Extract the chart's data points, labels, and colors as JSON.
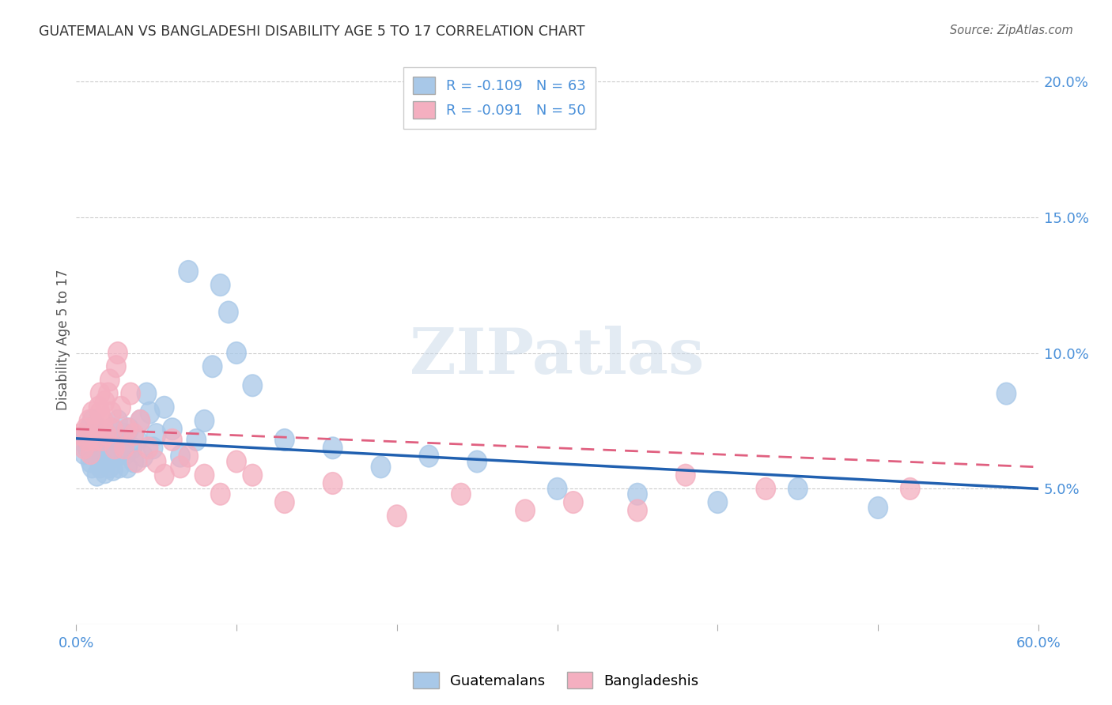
{
  "title": "GUATEMALAN VS BANGLADESHI DISABILITY AGE 5 TO 17 CORRELATION CHART",
  "source": "Source: ZipAtlas.com",
  "ylabel_label": "Disability Age 5 to 17",
  "xlim": [
    0.0,
    0.6
  ],
  "ylim": [
    0.0,
    0.21
  ],
  "xtick_labels": [
    "0.0%",
    "",
    "",
    "",
    "",
    "",
    "60.0%"
  ],
  "xtick_values": [
    0.0,
    0.1,
    0.2,
    0.3,
    0.4,
    0.5,
    0.6
  ],
  "ytick_labels": [
    "5.0%",
    "10.0%",
    "15.0%",
    "20.0%"
  ],
  "ytick_values": [
    0.05,
    0.1,
    0.15,
    0.2
  ],
  "guatemalan_color": "#a8c8e8",
  "bangladeshi_color": "#f4afc0",
  "trend_guatemalan_color": "#2060b0",
  "trend_bangladeshi_color": "#e06080",
  "r_guatemalan": -0.109,
  "n_guatemalan": 63,
  "r_bangladeshi": -0.091,
  "n_bangladeshi": 50,
  "watermark": "ZIPatlas",
  "background_color": "#ffffff",
  "grid_color": "#cccccc",
  "tick_color": "#aaaaaa",
  "label_color": "#4a90d9",
  "title_color": "#333333",
  "source_color": "#666666",
  "ylabel_color": "#555555",
  "guatemalan_x": [
    0.003,
    0.005,
    0.006,
    0.007,
    0.008,
    0.009,
    0.01,
    0.01,
    0.012,
    0.013,
    0.014,
    0.015,
    0.015,
    0.016,
    0.017,
    0.018,
    0.018,
    0.019,
    0.02,
    0.021,
    0.022,
    0.022,
    0.023,
    0.024,
    0.025,
    0.026,
    0.027,
    0.028,
    0.03,
    0.031,
    0.032,
    0.033,
    0.035,
    0.036,
    0.038,
    0.04,
    0.042,
    0.044,
    0.046,
    0.048,
    0.05,
    0.055,
    0.06,
    0.065,
    0.07,
    0.075,
    0.08,
    0.085,
    0.09,
    0.095,
    0.1,
    0.11,
    0.13,
    0.16,
    0.19,
    0.22,
    0.25,
    0.3,
    0.35,
    0.4,
    0.45,
    0.5,
    0.58
  ],
  "guatemalan_y": [
    0.068,
    0.063,
    0.07,
    0.065,
    0.072,
    0.06,
    0.075,
    0.058,
    0.068,
    0.055,
    0.072,
    0.065,
    0.058,
    0.06,
    0.068,
    0.062,
    0.056,
    0.07,
    0.065,
    0.058,
    0.072,
    0.063,
    0.057,
    0.068,
    0.062,
    0.075,
    0.058,
    0.065,
    0.07,
    0.063,
    0.058,
    0.072,
    0.065,
    0.06,
    0.068,
    0.075,
    0.062,
    0.085,
    0.078,
    0.065,
    0.07,
    0.08,
    0.072,
    0.062,
    0.13,
    0.068,
    0.075,
    0.095,
    0.125,
    0.115,
    0.1,
    0.088,
    0.068,
    0.065,
    0.058,
    0.062,
    0.06,
    0.05,
    0.048,
    0.045,
    0.05,
    0.043,
    0.085
  ],
  "bangladeshi_x": [
    0.003,
    0.005,
    0.006,
    0.007,
    0.008,
    0.009,
    0.01,
    0.012,
    0.013,
    0.014,
    0.015,
    0.015,
    0.016,
    0.017,
    0.018,
    0.019,
    0.02,
    0.021,
    0.022,
    0.023,
    0.024,
    0.025,
    0.026,
    0.028,
    0.03,
    0.032,
    0.034,
    0.036,
    0.038,
    0.04,
    0.045,
    0.05,
    0.055,
    0.06,
    0.065,
    0.07,
    0.08,
    0.09,
    0.1,
    0.11,
    0.13,
    0.16,
    0.2,
    0.24,
    0.28,
    0.31,
    0.35,
    0.38,
    0.43,
    0.52
  ],
  "bangladeshi_y": [
    0.07,
    0.065,
    0.072,
    0.068,
    0.075,
    0.063,
    0.078,
    0.068,
    0.073,
    0.08,
    0.085,
    0.078,
    0.068,
    0.075,
    0.082,
    0.07,
    0.085,
    0.09,
    0.078,
    0.072,
    0.065,
    0.095,
    0.1,
    0.08,
    0.065,
    0.072,
    0.085,
    0.07,
    0.06,
    0.075,
    0.065,
    0.06,
    0.055,
    0.068,
    0.058,
    0.062,
    0.055,
    0.048,
    0.06,
    0.055,
    0.045,
    0.052,
    0.04,
    0.048,
    0.042,
    0.045,
    0.042,
    0.055,
    0.05,
    0.05
  ],
  "trend_g_x0": 0.0,
  "trend_g_x1": 0.6,
  "trend_g_y0": 0.0685,
  "trend_g_y1": 0.05,
  "trend_b_x0": 0.0,
  "trend_b_x1": 0.6,
  "trend_b_y0": 0.072,
  "trend_b_y1": 0.058
}
